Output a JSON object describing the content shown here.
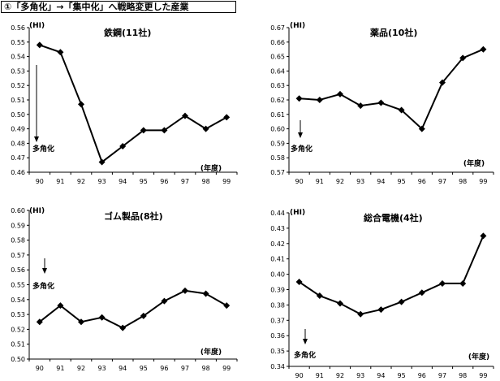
{
  "header": {
    "title": "①「多角化」→「集中化」へ戦略変更した産業"
  },
  "chart_data": [
    {
      "type": "line",
      "title": "鉄鋼(11社)",
      "ylabel": "(HI)",
      "xlabel": "(年度)",
      "categories": [
        "90",
        "91",
        "92",
        "93",
        "94",
        "95",
        "96",
        "97",
        "98",
        "99"
      ],
      "series": [
        {
          "values": [
            0.548,
            0.543,
            0.507,
            0.467,
            0.478,
            0.489,
            0.489,
            0.499,
            0.49,
            0.498
          ]
        }
      ],
      "ylim": [
        0.46,
        0.56
      ],
      "yticks": [
        "0.46",
        "0.47",
        "0.48",
        "0.49",
        "0.50",
        "0.51",
        "0.52",
        "0.53",
        "0.54",
        "0.55",
        "0.56"
      ],
      "annotation": {
        "text": "多角化",
        "at_category": "90"
      },
      "grid": false
    },
    {
      "type": "line",
      "title": "薬品(10社)",
      "ylabel": "(HI)",
      "xlabel": "(年度)",
      "categories": [
        "90",
        "91",
        "92",
        "93",
        "94",
        "95",
        "96",
        "97",
        "98",
        "99"
      ],
      "series": [
        {
          "values": [
            0.621,
            0.62,
            0.624,
            0.616,
            0.618,
            0.613,
            0.6,
            0.632,
            0.649,
            0.655
          ]
        }
      ],
      "ylim": [
        0.57,
        0.67
      ],
      "yticks": [
        "0.57",
        "0.58",
        "0.59",
        "0.60",
        "0.61",
        "0.62",
        "0.63",
        "0.64",
        "0.65",
        "0.66",
        "0.67"
      ],
      "annotation": {
        "text": "多角化",
        "at_category": "90"
      },
      "grid": false
    },
    {
      "type": "line",
      "title": "ゴム製品(8社)",
      "ylabel": "(HI)",
      "xlabel": "(年度)",
      "categories": [
        "90",
        "91",
        "92",
        "93",
        "94",
        "95",
        "96",
        "97",
        "98",
        "99"
      ],
      "series": [
        {
          "values": [
            0.525,
            0.536,
            0.525,
            0.528,
            0.521,
            0.529,
            0.539,
            0.546,
            0.544,
            0.536
          ]
        }
      ],
      "ylim": [
        0.5,
        0.6
      ],
      "yticks": [
        "0.50",
        "0.51",
        "0.52",
        "0.53",
        "0.54",
        "0.55",
        "0.56",
        "0.57",
        "0.58",
        "0.59",
        "0.60"
      ],
      "annotation": {
        "text": "多角化",
        "at_category": "91"
      },
      "grid": false
    },
    {
      "type": "line",
      "title": "総合電機(4社)",
      "ylabel": "(HI)",
      "xlabel": "(年度)",
      "categories": [
        "90",
        "91",
        "92",
        "93",
        "94",
        "95",
        "96",
        "97",
        "98",
        "99"
      ],
      "series": [
        {
          "values": [
            0.395,
            0.386,
            0.381,
            0.374,
            0.377,
            0.382,
            0.388,
            0.394,
            0.394,
            0.425
          ]
        }
      ],
      "ylim": [
        0.34,
        0.44
      ],
      "yticks": [
        "0.34",
        "0.35",
        "0.36",
        "0.37",
        "0.38",
        "0.39",
        "0.40",
        "0.41",
        "0.42",
        "0.43",
        "0.44"
      ],
      "annotation": {
        "text": "多角化",
        "at_category": "90"
      },
      "grid": false
    }
  ]
}
